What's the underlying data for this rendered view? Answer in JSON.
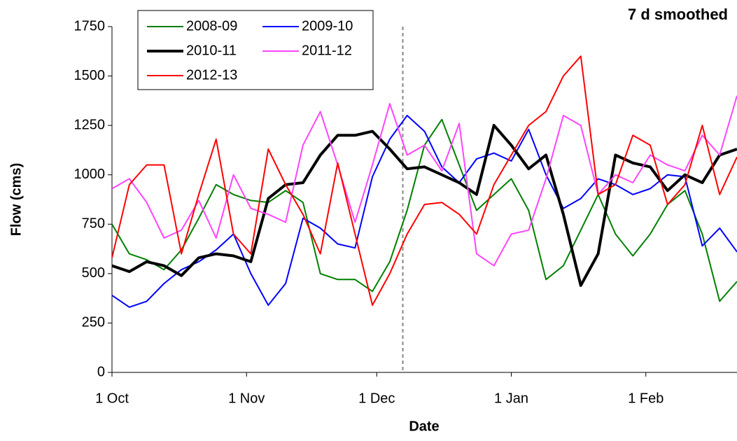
{
  "chart_data": {
    "type": "line",
    "annotation": "7 d smoothed",
    "xlabel": "Date",
    "ylabel": "Flow (cms)",
    "x": [
      0,
      4,
      8,
      12,
      16,
      20,
      24,
      28,
      32,
      36,
      40,
      44,
      48,
      52,
      56,
      60,
      64,
      68,
      72,
      76,
      80,
      84,
      88,
      92,
      96,
      100,
      104,
      108,
      112,
      116,
      120,
      124,
      128,
      132,
      136,
      140,
      144
    ],
    "xlim": [
      0,
      144
    ],
    "xticks": [
      {
        "value": 0,
        "label": "1 Oct"
      },
      {
        "value": 31,
        "label": "1 Nov"
      },
      {
        "value": 61,
        "label": "1 Dec"
      },
      {
        "value": 92,
        "label": "1 Jan"
      },
      {
        "value": 123,
        "label": "1 Feb"
      }
    ],
    "reference_x": 67,
    "ylim": [
      0,
      1750
    ],
    "yticks": [
      0,
      250,
      500,
      750,
      1000,
      1250,
      1500,
      1750
    ],
    "legend": "top-left",
    "series": [
      {
        "name": "2008-09",
        "color": "#008000",
        "values": [
          750,
          600,
          570,
          520,
          620,
          780,
          950,
          900,
          870,
          860,
          920,
          860,
          500,
          470,
          470,
          410,
          560,
          820,
          1150,
          1280,
          1050,
          820,
          900,
          980,
          820,
          470,
          540,
          720,
          900,
          700,
          590,
          700,
          850,
          920,
          700,
          360,
          460
        ]
      },
      {
        "name": "2009-10",
        "color": "#0000ff",
        "values": [
          390,
          330,
          360,
          450,
          520,
          560,
          620,
          700,
          500,
          340,
          450,
          780,
          730,
          650,
          630,
          990,
          1180,
          1300,
          1220,
          1040,
          960,
          1080,
          1110,
          1070,
          1230,
          1000,
          830,
          880,
          980,
          950,
          900,
          930,
          1000,
          990,
          640,
          730,
          610
        ]
      },
      {
        "name": "2010-11",
        "color": "#000000",
        "width": 4,
        "values": [
          540,
          510,
          560,
          540,
          490,
          580,
          600,
          590,
          560,
          880,
          950,
          960,
          1100,
          1200,
          1200,
          1220,
          1130,
          1030,
          1040,
          1000,
          960,
          900,
          1250,
          1150,
          1030,
          1100,
          800,
          440,
          600,
          1100,
          1060,
          1040,
          920,
          1000,
          960,
          1100,
          1130
        ]
      },
      {
        "name": "2011-12",
        "color": "#ff44ff",
        "values": [
          930,
          980,
          860,
          680,
          720,
          870,
          680,
          1000,
          830,
          800,
          760,
          1150,
          1320,
          1050,
          760,
          1050,
          1360,
          1100,
          1150,
          1020,
          1260,
          600,
          540,
          700,
          720,
          980,
          1300,
          1250,
          900,
          1000,
          960,
          1100,
          1050,
          1020,
          1200,
          1100,
          1400
        ]
      },
      {
        "name": "2012-13",
        "color": "#ff0000",
        "values": [
          580,
          950,
          1050,
          1050,
          600,
          900,
          1180,
          700,
          600,
          1130,
          950,
          800,
          600,
          1060,
          700,
          340,
          500,
          700,
          850,
          860,
          800,
          700,
          950,
          1100,
          1250,
          1320,
          1500,
          1600,
          900,
          950,
          1200,
          1150,
          850,
          950,
          1250,
          900,
          1090
        ]
      }
    ]
  }
}
